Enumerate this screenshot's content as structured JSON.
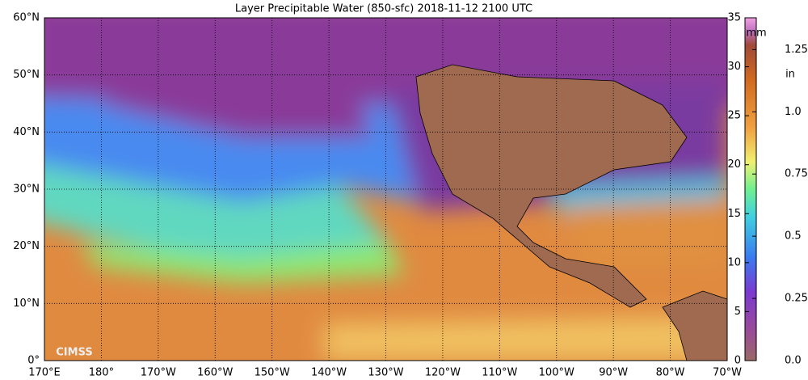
{
  "header": {
    "title": "Layer Precipitable Water (850-sfc)  2018-11-12 2100 UTC"
  },
  "map": {
    "lat_labels": [
      "60°N",
      "50°N",
      "40°N",
      "30°N",
      "20°N",
      "10°N",
      "0°"
    ],
    "lon_labels": [
      "170°E",
      "180°",
      "170°W",
      "160°W",
      "150°W",
      "140°W",
      "130°W",
      "120°W",
      "110°W",
      "100°W",
      "90°W",
      "80°W",
      "70°W"
    ],
    "logo": "CIMSS"
  },
  "colorbar": {
    "range": [
      0,
      35
    ],
    "unit_mm": "mm",
    "unit_in": "in",
    "mm_ticks": [
      0,
      5,
      10,
      15,
      20,
      25,
      30,
      35
    ],
    "in_ticks": [
      {
        "value": 0,
        "label": "0.0"
      },
      {
        "value": 0.25,
        "label": "0.25"
      },
      {
        "value": 0.5,
        "label": "0.5"
      },
      {
        "value": 0.75,
        "label": "0.75"
      },
      {
        "value": 1,
        "label": "1.0"
      },
      {
        "value": 1.25,
        "label": "1.25"
      }
    ]
  }
}
